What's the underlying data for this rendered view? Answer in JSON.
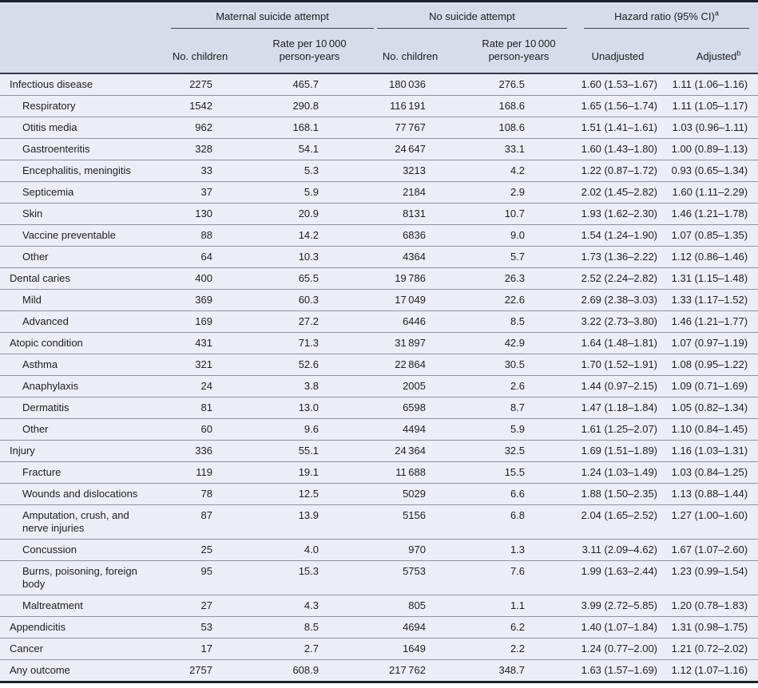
{
  "table": {
    "header": {
      "groups": [
        {
          "label": "Maternal suicide attempt",
          "sup": ""
        },
        {
          "label": "No suicide attempt",
          "sup": ""
        },
        {
          "label": "Hazard ratio (95% CI)",
          "sup": "a"
        }
      ],
      "subcolumns": [
        {
          "label": "No. children",
          "sup": ""
        },
        {
          "label": "Rate per 10 000 person-years",
          "sup": ""
        },
        {
          "label": "No. children",
          "sup": ""
        },
        {
          "label": "Rate per 10 000 person-years",
          "sup": ""
        },
        {
          "label": "Unadjusted",
          "sup": ""
        },
        {
          "label": "Adjusted",
          "sup": "b"
        }
      ]
    },
    "rows": [
      {
        "label": "Infectious disease",
        "indent": false,
        "msa_children": "2275",
        "msa_rate": "465.7",
        "nsa_children": "180 036",
        "nsa_rate": "276.5",
        "hr_unadjusted": "1.60 (1.53–1.67)",
        "hr_adjusted": "1.11 (1.06–1.16)"
      },
      {
        "label": "Respiratory",
        "indent": true,
        "msa_children": "1542",
        "msa_rate": "290.8",
        "nsa_children": "116 191",
        "nsa_rate": "168.6",
        "hr_unadjusted": "1.65 (1.56–1.74)",
        "hr_adjusted": "1.11 (1.05–1.17)"
      },
      {
        "label": "Otitis media",
        "indent": true,
        "msa_children": "962",
        "msa_rate": "168.1",
        "nsa_children": "77 767",
        "nsa_rate": "108.6",
        "hr_unadjusted": "1.51 (1.41–1.61)",
        "hr_adjusted": "1.03 (0.96–1.11)"
      },
      {
        "label": "Gastroenteritis",
        "indent": true,
        "msa_children": "328",
        "msa_rate": "54.1",
        "nsa_children": "24 647",
        "nsa_rate": "33.1",
        "hr_unadjusted": "1.60 (1.43–1.80)",
        "hr_adjusted": "1.00 (0.89–1.13)"
      },
      {
        "label": "Encephalitis, meningitis",
        "indent": true,
        "msa_children": "33",
        "msa_rate": "5.3",
        "nsa_children": "3213",
        "nsa_rate": "4.2",
        "hr_unadjusted": "1.22 (0.87–1.72)",
        "hr_adjusted": "0.93 (0.65–1.34)"
      },
      {
        "label": "Septicemia",
        "indent": true,
        "msa_children": "37",
        "msa_rate": "5.9",
        "nsa_children": "2184",
        "nsa_rate": "2.9",
        "hr_unadjusted": "2.02 (1.45–2.82)",
        "hr_adjusted": "1.60 (1.11–2.29)"
      },
      {
        "label": "Skin",
        "indent": true,
        "msa_children": "130",
        "msa_rate": "20.9",
        "nsa_children": "8131",
        "nsa_rate": "10.7",
        "hr_unadjusted": "1.93 (1.62–2.30)",
        "hr_adjusted": "1.46 (1.21–1.78)"
      },
      {
        "label": "Vaccine preventable",
        "indent": true,
        "msa_children": "88",
        "msa_rate": "14.2",
        "nsa_children": "6836",
        "nsa_rate": "9.0",
        "hr_unadjusted": "1.54 (1.24–1.90)",
        "hr_adjusted": "1.07 (0.85–1.35)"
      },
      {
        "label": "Other",
        "indent": true,
        "msa_children": "64",
        "msa_rate": "10.3",
        "nsa_children": "4364",
        "nsa_rate": "5.7",
        "hr_unadjusted": "1.73 (1.36–2.22)",
        "hr_adjusted": "1.12 (0.86–1.46)"
      },
      {
        "label": "Dental caries",
        "indent": false,
        "msa_children": "400",
        "msa_rate": "65.5",
        "nsa_children": "19 786",
        "nsa_rate": "26.3",
        "hr_unadjusted": "2.52 (2.24–2.82)",
        "hr_adjusted": "1.31 (1.15–1.48)"
      },
      {
        "label": "Mild",
        "indent": true,
        "msa_children": "369",
        "msa_rate": "60.3",
        "nsa_children": "17 049",
        "nsa_rate": "22.6",
        "hr_unadjusted": "2.69 (2.38–3.03)",
        "hr_adjusted": "1.33 (1.17–1.52)"
      },
      {
        "label": "Advanced",
        "indent": true,
        "msa_children": "169",
        "msa_rate": "27.2",
        "nsa_children": "6446",
        "nsa_rate": "8.5",
        "hr_unadjusted": "3.22 (2.73–3.80)",
        "hr_adjusted": "1.46 (1.21–1.77)"
      },
      {
        "label": "Atopic condition",
        "indent": false,
        "msa_children": "431",
        "msa_rate": "71.3",
        "nsa_children": "31 897",
        "nsa_rate": "42.9",
        "hr_unadjusted": "1.64 (1.48–1.81)",
        "hr_adjusted": "1.07 (0.97–1.19)"
      },
      {
        "label": "Asthma",
        "indent": true,
        "msa_children": "321",
        "msa_rate": "52.6",
        "nsa_children": "22 864",
        "nsa_rate": "30.5",
        "hr_unadjusted": "1.70 (1.52–1.91)",
        "hr_adjusted": "1.08 (0.95–1.22)"
      },
      {
        "label": "Anaphylaxis",
        "indent": true,
        "msa_children": "24",
        "msa_rate": "3.8",
        "nsa_children": "2005",
        "nsa_rate": "2.6",
        "hr_unadjusted": "1.44 (0.97–2.15)",
        "hr_adjusted": "1.09 (0.71–1.69)"
      },
      {
        "label": "Dermatitis",
        "indent": true,
        "msa_children": "81",
        "msa_rate": "13.0",
        "nsa_children": "6598",
        "nsa_rate": "8.7",
        "hr_unadjusted": "1.47 (1.18–1.84)",
        "hr_adjusted": "1.05 (0.82–1.34)"
      },
      {
        "label": "Other",
        "indent": true,
        "msa_children": "60",
        "msa_rate": "9.6",
        "nsa_children": "4494",
        "nsa_rate": "5.9",
        "hr_unadjusted": "1.61 (1.25–2.07)",
        "hr_adjusted": "1.10 (0.84–1.45)"
      },
      {
        "label": "Injury",
        "indent": false,
        "msa_children": "336",
        "msa_rate": "55.1",
        "nsa_children": "24 364",
        "nsa_rate": "32.5",
        "hr_unadjusted": "1.69 (1.51–1.89)",
        "hr_adjusted": "1.16 (1.03–1.31)"
      },
      {
        "label": "Fracture",
        "indent": true,
        "msa_children": "119",
        "msa_rate": "19.1",
        "nsa_children": "11 688",
        "nsa_rate": "15.5",
        "hr_unadjusted": "1.24 (1.03–1.49)",
        "hr_adjusted": "1.03 (0.84–1.25)"
      },
      {
        "label": "Wounds and dislocations",
        "indent": true,
        "msa_children": "78",
        "msa_rate": "12.5",
        "nsa_children": "5029",
        "nsa_rate": "6.6",
        "hr_unadjusted": "1.88 (1.50–2.35)",
        "hr_adjusted": "1.13 (0.88–1.44)"
      },
      {
        "label": "Amputation, crush, and nerve injuries",
        "indent": true,
        "msa_children": "87",
        "msa_rate": "13.9",
        "nsa_children": "5156",
        "nsa_rate": "6.8",
        "hr_unadjusted": "2.04 (1.65–2.52)",
        "hr_adjusted": "1.27 (1.00–1.60)"
      },
      {
        "label": "Concussion",
        "indent": true,
        "msa_children": "25",
        "msa_rate": "4.0",
        "nsa_children": "970",
        "nsa_rate": "1.3",
        "hr_unadjusted": "3.11 (2.09–4.62)",
        "hr_adjusted": "1.67 (1.07–2.60)"
      },
      {
        "label": "Burns, poisoning, foreign body",
        "indent": true,
        "msa_children": "95",
        "msa_rate": "15.3",
        "nsa_children": "5753",
        "nsa_rate": "7.6",
        "hr_unadjusted": "1.99 (1.63–2.44)",
        "hr_adjusted": "1.23 (0.99–1.54)"
      },
      {
        "label": "Maltreatment",
        "indent": true,
        "msa_children": "27",
        "msa_rate": "4.3",
        "nsa_children": "805",
        "nsa_rate": "1.1",
        "hr_unadjusted": "3.99 (2.72–5.85)",
        "hr_adjusted": "1.20 (0.78–1.83)"
      },
      {
        "label": "Appendicitis",
        "indent": false,
        "msa_children": "53",
        "msa_rate": "8.5",
        "nsa_children": "4694",
        "nsa_rate": "6.2",
        "hr_unadjusted": "1.40 (1.07–1.84)",
        "hr_adjusted": "1.31 (0.98–1.75)"
      },
      {
        "label": "Cancer",
        "indent": false,
        "msa_children": "17",
        "msa_rate": "2.7",
        "nsa_children": "1649",
        "nsa_rate": "2.2",
        "hr_unadjusted": "1.24 (0.77–2.00)",
        "hr_adjusted": "1.21 (0.72–2.02)"
      },
      {
        "label": "Any outcome",
        "indent": false,
        "msa_children": "2757",
        "msa_rate": "608.9",
        "nsa_children": "217 762",
        "nsa_rate": "348.7",
        "hr_unadjusted": "1.63 (1.57–1.69)",
        "hr_adjusted": "1.12 (1.07–1.16)"
      }
    ],
    "colors": {
      "header_bg": "#d6dcea",
      "row_bg": "#ebeef6",
      "dark_border": "#1b212c",
      "rule_dark": "#3d4450",
      "row_line": "#8e939d"
    }
  }
}
